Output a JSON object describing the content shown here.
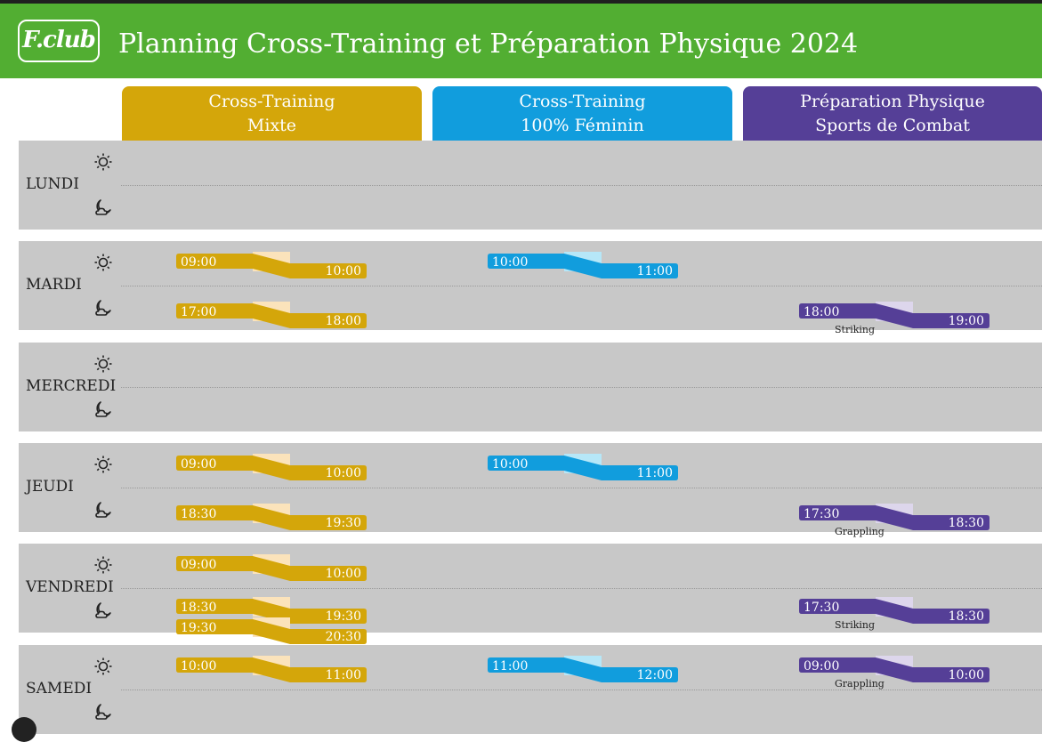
{
  "header": {
    "logo_text": "F.club",
    "title": "Planning Cross-Training et Préparation Physique 2024"
  },
  "columns": [
    {
      "line1": "Cross-Training",
      "line2": "Mixte",
      "color": "#d4a60a",
      "light": "#fbe3bb"
    },
    {
      "line1": "Cross-Training",
      "line2": "100% Féminin",
      "color": "#119ddd",
      "light": "#b6e7f8"
    },
    {
      "line1": "Préparation Physique",
      "line2": "Sports de Combat",
      "color": "#553f97",
      "light": "#ddd6ec"
    }
  ],
  "icons": {
    "morning": "sun-icon",
    "evening": "moon-cloud-icon"
  },
  "days": [
    {
      "name": "LUNDI",
      "sessions": []
    },
    {
      "name": "MARDI",
      "sessions": [
        {
          "col": 0,
          "period": "morning",
          "start": "09:00",
          "end": "10:00",
          "label": ""
        },
        {
          "col": 1,
          "period": "morning",
          "start": "10:00",
          "end": "11:00",
          "label": ""
        },
        {
          "col": 0,
          "period": "evening",
          "start": "17:00",
          "end": "18:00",
          "label": ""
        },
        {
          "col": 2,
          "period": "evening",
          "start": "18:00",
          "end": "19:00",
          "label": "Striking"
        }
      ]
    },
    {
      "name": "MERCREDI",
      "sessions": []
    },
    {
      "name": "JEUDI",
      "sessions": [
        {
          "col": 0,
          "period": "morning",
          "start": "09:00",
          "end": "10:00",
          "label": ""
        },
        {
          "col": 1,
          "period": "morning",
          "start": "10:00",
          "end": "11:00",
          "label": ""
        },
        {
          "col": 0,
          "period": "evening",
          "start": "18:30",
          "end": "19:30",
          "label": ""
        },
        {
          "col": 2,
          "period": "evening",
          "start": "17:30",
          "end": "18:30",
          "label": "Grappling"
        }
      ]
    },
    {
      "name": "VENDREDI",
      "sessions": [
        {
          "col": 0,
          "period": "morning",
          "start": "09:00",
          "end": "10:00",
          "label": ""
        },
        {
          "col": 0,
          "period": "evening",
          "start": "18:30",
          "end": "19:30",
          "label": ""
        },
        {
          "col": 0,
          "period": "evening2",
          "start": "19:30",
          "end": "20:30",
          "label": ""
        },
        {
          "col": 2,
          "period": "evening",
          "start": "17:30",
          "end": "18:30",
          "label": "Striking"
        }
      ]
    },
    {
      "name": "SAMEDI",
      "sessions": [
        {
          "col": 0,
          "period": "morning",
          "start": "10:00",
          "end": "11:00",
          "label": ""
        },
        {
          "col": 1,
          "period": "morning",
          "start": "11:00",
          "end": "12:00",
          "label": ""
        },
        {
          "col": 2,
          "period": "morning",
          "start": "09:00",
          "end": "10:00",
          "label": "Grappling"
        }
      ]
    }
  ]
}
